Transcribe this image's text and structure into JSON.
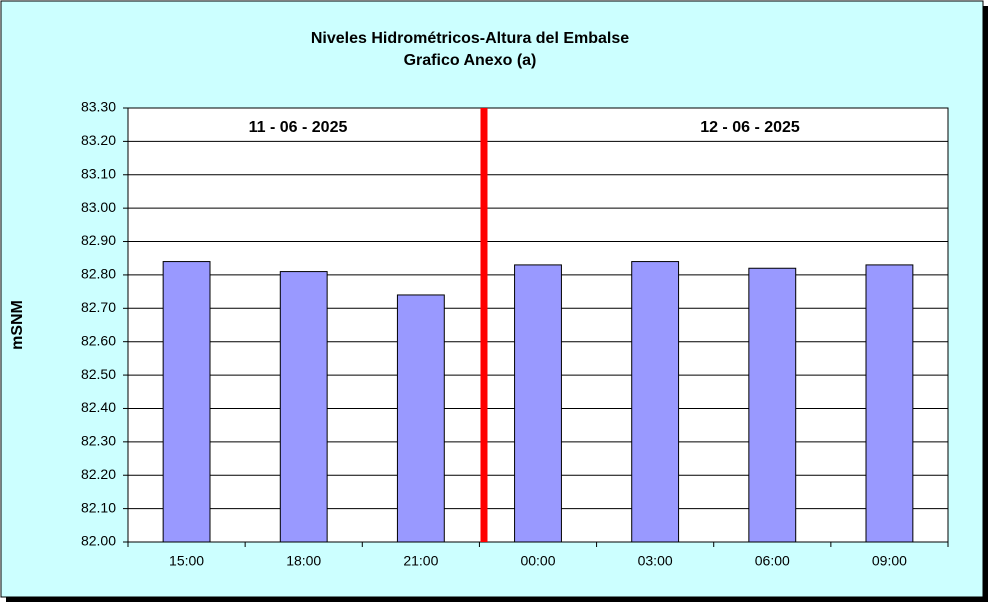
{
  "chart_data": {
    "type": "bar",
    "title": "Niveles Hidrométricos-Altura del Embalse",
    "subtitle": "Grafico Anexo (a)",
    "y_label": "mSNM",
    "annotations": [
      "11 - 06 - 2025",
      "12 - 06 - 2025"
    ],
    "categories": [
      "15:00",
      "18:00",
      "21:00",
      "00:00",
      "03:00",
      "06:00",
      "09:00"
    ],
    "values": [
      82.84,
      82.81,
      82.74,
      82.83,
      82.84,
      82.82,
      82.83
    ],
    "color": "#9999ff",
    "ylim": [
      82.0,
      83.3
    ],
    "yticks": [
      {
        "value": 82.0,
        "label": "82.00"
      },
      {
        "value": 82.1,
        "label": "82.10"
      },
      {
        "value": 82.2,
        "label": "82.20"
      },
      {
        "value": 82.3,
        "label": "82.30"
      },
      {
        "value": 82.4,
        "label": "82.40"
      },
      {
        "value": 82.5,
        "label": "82.50"
      },
      {
        "value": 82.6,
        "label": "82.60"
      },
      {
        "value": 82.7,
        "label": "82.70"
      },
      {
        "value": 82.8,
        "label": "82.80"
      },
      {
        "value": 82.9,
        "label": "82.90"
      },
      {
        "value": 83.0,
        "label": "83.00"
      },
      {
        "value": 83.1,
        "label": "83.10"
      },
      {
        "value": 83.2,
        "label": "83.20"
      },
      {
        "value": 83.3,
        "label": "83.30"
      }
    ],
    "grid": true
  }
}
